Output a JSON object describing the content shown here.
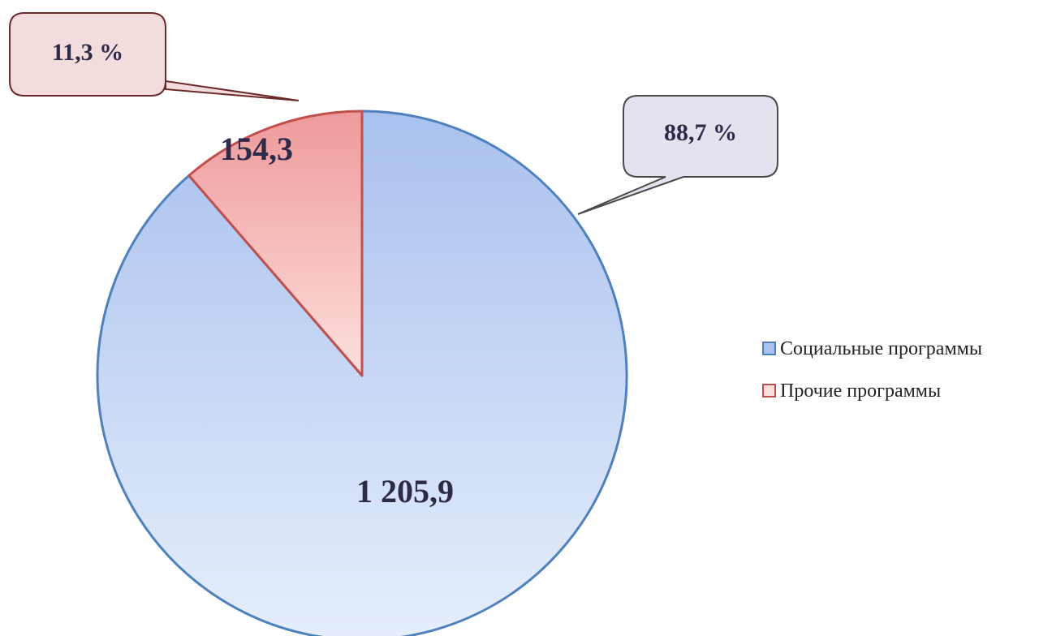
{
  "chart_data": {
    "type": "pie",
    "title": "",
    "categories": [
      "Социальные программы",
      "Прочие программы"
    ],
    "values": [
      1205.9,
      154.3
    ],
    "value_labels": [
      "1 205,9",
      "154,3"
    ],
    "percent_labels": [
      "88,7 %",
      "11,3 %"
    ],
    "legend_position": "right",
    "colors": {
      "social_fill_top": "#a9c1ee",
      "social_fill_bottom": "#e6eefb",
      "social_stroke": "#4f81bd",
      "other_fill_top": "#ee9a9a",
      "other_fill_bottom": "#fde0de",
      "other_stroke": "#c0504d",
      "callout_social_fill": "#e6e1ef",
      "callout_other_fill": "#f2dcdc",
      "callout_stroke": "#4a4a4a",
      "callout_other_stroke": "#6b2a2a",
      "label_text": "#2e2a4a"
    }
  }
}
